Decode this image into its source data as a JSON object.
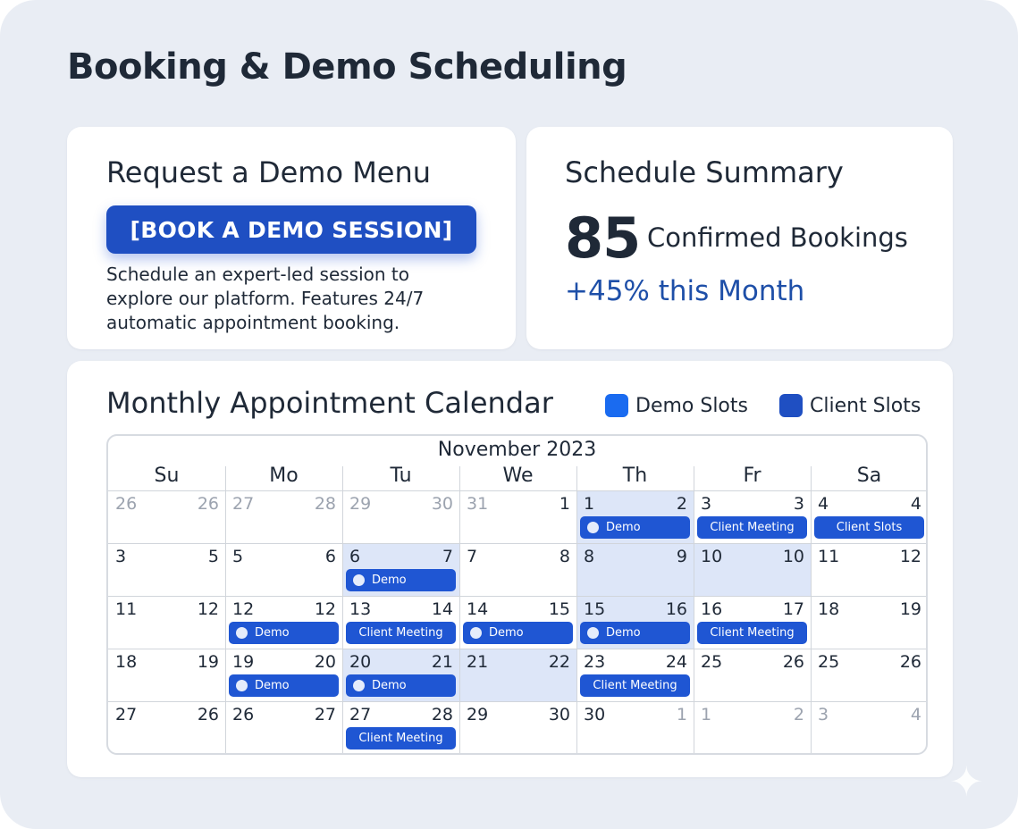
{
  "page": {
    "title": "Booking & Demo Scheduling"
  },
  "demo_card": {
    "title": "Request a Demo Menu",
    "button_label": "[BOOK A DEMO SESSION]",
    "description": "Schedule an expert-led session to explore our platform. Features 24/7 automatic appointment booking."
  },
  "summary_card": {
    "title": "Schedule Summary",
    "count": "85",
    "count_label": "Confirmed Bookings",
    "change": "+45% this Month"
  },
  "calendar": {
    "title": "Monthly Appointment Calendar",
    "legend": [
      {
        "label": "Demo Slots",
        "color": "#1a6bf0"
      },
      {
        "label": "Client Slots",
        "color": "#1f4fc2"
      }
    ],
    "month": "November 2023",
    "weekdays": [
      "Su",
      "Mo",
      "Tu",
      "We",
      "Th",
      "Fr",
      "Sa"
    ],
    "weeks": [
      [
        {
          "left": "26",
          "right": "26",
          "muted": true
        },
        {
          "left": "27",
          "right": "28",
          "muted": true
        },
        {
          "left": "29",
          "right": "30",
          "muted": true
        },
        {
          "left": "31",
          "right": "1",
          "muted_left": true
        },
        {
          "left": "1",
          "right": "2",
          "shaded": true,
          "event": {
            "label": "Demo",
            "kind": "demo"
          }
        },
        {
          "left": "3",
          "right": "3",
          "event": {
            "label": "Client Meeting",
            "kind": "client"
          }
        },
        {
          "left": "4",
          "right": "4",
          "event": {
            "label": "Client Slots",
            "kind": "client"
          }
        }
      ],
      [
        {
          "left": "3",
          "right": "5"
        },
        {
          "left": "5",
          "right": "6"
        },
        {
          "left": "6",
          "right": "7",
          "shaded": true,
          "event": {
            "label": "Demo",
            "kind": "demo"
          }
        },
        {
          "left": "7",
          "right": "8"
        },
        {
          "left": "8",
          "right": "9",
          "shaded": true
        },
        {
          "left": "10",
          "right": "10",
          "shaded": true
        },
        {
          "left": "11",
          "right": "12"
        }
      ],
      [
        {
          "left": "11",
          "right": "12"
        },
        {
          "left": "12",
          "right": "12",
          "event": {
            "label": "Demo",
            "kind": "demo"
          }
        },
        {
          "left": "13",
          "right": "14",
          "event": {
            "label": "Client Meeting",
            "kind": "client"
          }
        },
        {
          "left": "14",
          "right": "15",
          "event": {
            "label": "Demo",
            "kind": "demo"
          }
        },
        {
          "left": "15",
          "right": "16",
          "shaded": true,
          "event": {
            "label": "Demo",
            "kind": "demo"
          }
        },
        {
          "left": "16",
          "right": "17",
          "event": {
            "label": "Client Meeting",
            "kind": "client"
          }
        },
        {
          "left": "18",
          "right": "19"
        }
      ],
      [
        {
          "left": "18",
          "right": "19"
        },
        {
          "left": "19",
          "right": "20",
          "event": {
            "label": "Demo",
            "kind": "demo"
          }
        },
        {
          "left": "20",
          "right": "21",
          "shaded": true,
          "event": {
            "label": "Demo",
            "kind": "demo"
          }
        },
        {
          "left": "21",
          "right": "22",
          "shaded": true
        },
        {
          "left": "23",
          "right": "24",
          "event": {
            "label": "Client Meeting",
            "kind": "client"
          }
        },
        {
          "left": "25",
          "right": "26"
        },
        {
          "left": "25",
          "right": "26"
        }
      ],
      [
        {
          "left": "27",
          "right": "26"
        },
        {
          "left": "26",
          "right": "27"
        },
        {
          "left": "27",
          "right": "28",
          "event": {
            "label": "Client Meeting",
            "kind": "client"
          }
        },
        {
          "left": "29",
          "right": "30"
        },
        {
          "left": "30",
          "right": "1",
          "muted_right": true
        },
        {
          "left": "1",
          "right": "2",
          "muted": true
        },
        {
          "left": "3",
          "right": "4",
          "muted": true
        }
      ]
    ]
  },
  "icons": {
    "event_dot": "dot-icon",
    "corner_mark": "sparkle-icon"
  }
}
